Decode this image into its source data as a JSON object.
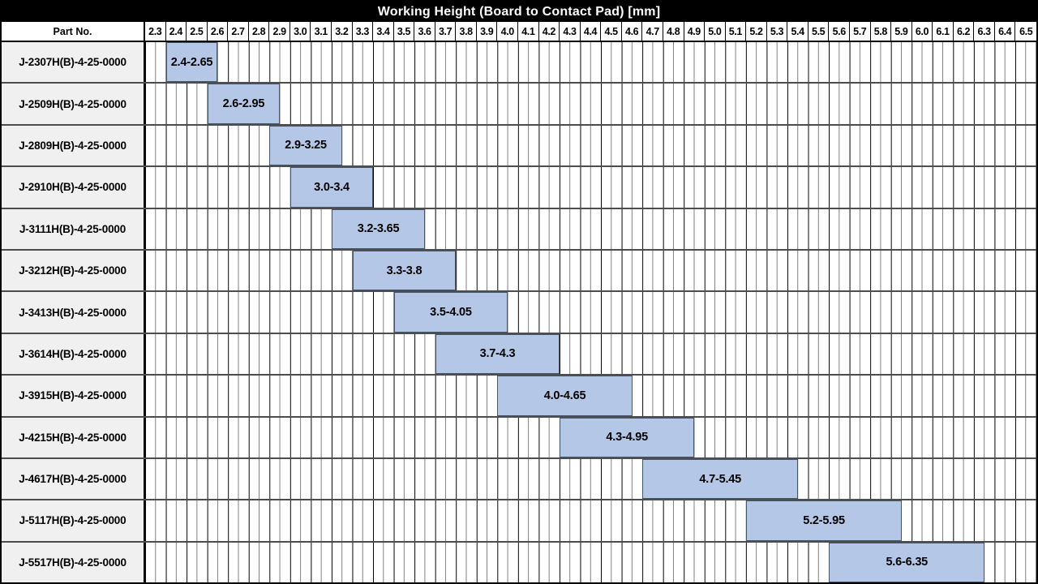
{
  "title": "Working Height (Board to Contact Pad) [mm]",
  "part_no_header": "Part No.",
  "colors": {
    "title_bg": "#000000",
    "title_text": "#ffffff",
    "bar_fill": "#b4c7e7",
    "bar_border": "#44546a",
    "part_cell_bg": "#f0f0f0",
    "major_gridline": "#000000",
    "minor_gridline": "#7f7f7f",
    "row_separator": "#4d4d4d"
  },
  "chart_data": {
    "type": "bar",
    "subtype": "horizontal-range-gantt",
    "title": "Working Height (Board to Contact Pad) [mm]",
    "xlabel": "",
    "ylabel": "Part No.",
    "axis": {
      "min": 2.3,
      "max": 6.6,
      "tick_step": 0.1,
      "minor_step": 0.05,
      "grid": true,
      "legend": "none"
    },
    "ticks": [
      "2.3",
      "2.4",
      "2.5",
      "2.6",
      "2.7",
      "2.8",
      "2.9",
      "3.0",
      "3.1",
      "3.2",
      "3.3",
      "3.4",
      "3.5",
      "3.6",
      "3.7",
      "3.8",
      "3.9",
      "4.0",
      "4.1",
      "4.2",
      "4.3",
      "4.4",
      "4.5",
      "4.6",
      "4.7",
      "4.8",
      "4.9",
      "5.0",
      "5.1",
      "5.2",
      "5.3",
      "5.4",
      "5.5",
      "5.6",
      "5.7",
      "5.8",
      "5.9",
      "6.0",
      "6.1",
      "6.2",
      "6.3",
      "6.4",
      "6.5"
    ],
    "rows": [
      {
        "part_no": "J-2307H(B)-4-25-0000",
        "start": 2.4,
        "end": 2.65,
        "label": "2.4-2.65"
      },
      {
        "part_no": "J-2509H(B)-4-25-0000",
        "start": 2.6,
        "end": 2.95,
        "label": "2.6-2.95"
      },
      {
        "part_no": "J-2809H(B)-4-25-0000",
        "start": 2.9,
        "end": 3.25,
        "label": "2.9-3.25"
      },
      {
        "part_no": "J-2910H(B)-4-25-0000",
        "start": 3.0,
        "end": 3.4,
        "label": "3.0-3.4"
      },
      {
        "part_no": "J-3111H(B)-4-25-0000",
        "start": 3.2,
        "end": 3.65,
        "label": "3.2-3.65"
      },
      {
        "part_no": "J-3212H(B)-4-25-0000",
        "start": 3.3,
        "end": 3.8,
        "label": "3.3-3.8"
      },
      {
        "part_no": "J-3413H(B)-4-25-0000",
        "start": 3.5,
        "end": 4.05,
        "label": "3.5-4.05"
      },
      {
        "part_no": "J-3614H(B)-4-25-0000",
        "start": 3.7,
        "end": 4.3,
        "label": "3.7-4.3"
      },
      {
        "part_no": "J-3915H(B)-4-25-0000",
        "start": 4.0,
        "end": 4.65,
        "label": "4.0-4.65"
      },
      {
        "part_no": "J-4215H(B)-4-25-0000",
        "start": 4.3,
        "end": 4.95,
        "label": "4.3-4.95"
      },
      {
        "part_no": "J-4617H(B)-4-25-0000",
        "start": 4.7,
        "end": 5.45,
        "label": "4.7-5.45"
      },
      {
        "part_no": "J-5117H(B)-4-25-0000",
        "start": 5.2,
        "end": 5.95,
        "label": "5.2-5.95"
      },
      {
        "part_no": "J-5517H(B)-4-25-0000",
        "start": 5.6,
        "end": 6.35,
        "label": "5.6-6.35"
      }
    ]
  }
}
